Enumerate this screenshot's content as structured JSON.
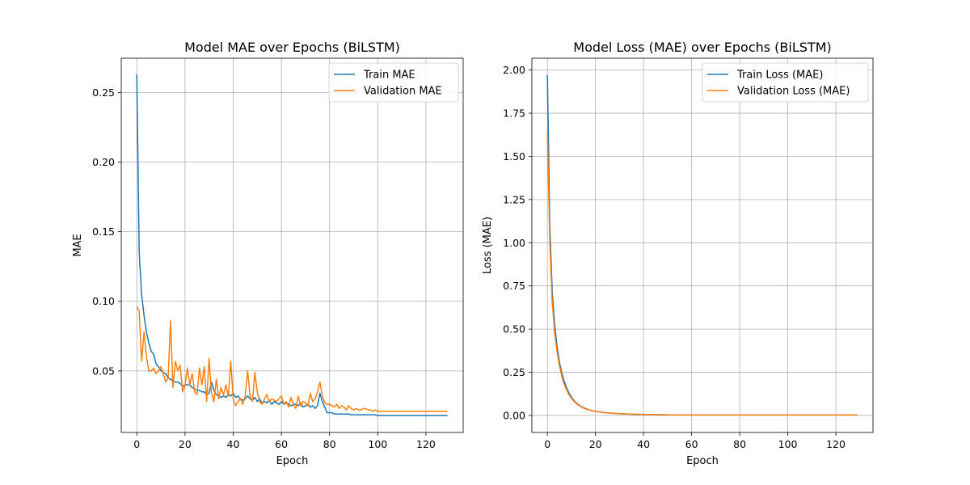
{
  "chart_data": [
    {
      "type": "line",
      "title": "Model MAE over Epochs (BiLSTM)",
      "xlabel": "Epoch",
      "ylabel": "MAE",
      "xlim": [
        -6.45,
        135.45
      ],
      "ylim": [
        0.0058,
        0.2746
      ],
      "xticks": [
        0,
        20,
        40,
        60,
        80,
        100,
        120
      ],
      "yticks": [
        0.05,
        0.1,
        0.15,
        0.2,
        0.25
      ],
      "ytick_labels": [
        "0.05",
        "0.10",
        "0.15",
        "0.20",
        "0.25"
      ],
      "grid": true,
      "legend_position": "upper right",
      "series": [
        {
          "name": "Train MAE",
          "color": "#1f77b4",
          "values": [
            0.263,
            0.135,
            0.105,
            0.09,
            0.078,
            0.07,
            0.064,
            0.062,
            0.055,
            0.053,
            0.05,
            0.049,
            0.048,
            0.045,
            0.044,
            0.043,
            0.042,
            0.042,
            0.041,
            0.039,
            0.04,
            0.04,
            0.04,
            0.038,
            0.037,
            0.036,
            0.036,
            0.035,
            0.035,
            0.033,
            0.034,
            0.042,
            0.036,
            0.033,
            0.032,
            0.031,
            0.032,
            0.031,
            0.033,
            0.032,
            0.034,
            0.031,
            0.032,
            0.03,
            0.029,
            0.03,
            0.032,
            0.03,
            0.029,
            0.031,
            0.028,
            0.03,
            0.027,
            0.028,
            0.027,
            0.029,
            0.026,
            0.028,
            0.027,
            0.026,
            0.028,
            0.026,
            0.027,
            0.026,
            0.025,
            0.026,
            0.026,
            0.025,
            0.027,
            0.024,
            0.025,
            0.026,
            0.024,
            0.025,
            0.023,
            0.025,
            0.034,
            0.028,
            0.024,
            0.02,
            0.02,
            0.02,
            0.019,
            0.019,
            0.019,
            0.019,
            0.019,
            0.019,
            0.019,
            0.0185,
            0.0185,
            0.0185,
            0.0185,
            0.0185,
            0.0185,
            0.0185,
            0.0185,
            0.0185,
            0.0185,
            0.0185,
            0.018,
            0.018,
            0.018,
            0.018,
            0.018,
            0.018,
            0.018,
            0.018,
            0.018,
            0.018,
            0.018,
            0.018,
            0.018,
            0.018,
            0.018,
            0.018,
            0.018,
            0.018,
            0.018,
            0.018,
            0.018,
            0.018,
            0.018,
            0.018,
            0.018,
            0.018,
            0.018,
            0.018,
            0.018,
            0.018
          ]
        },
        {
          "name": "Validation MAE",
          "color": "#ff7f0e",
          "values": [
            0.096,
            0.093,
            0.057,
            0.078,
            0.06,
            0.05,
            0.05,
            0.052,
            0.048,
            0.05,
            0.053,
            0.048,
            0.042,
            0.045,
            0.086,
            0.038,
            0.057,
            0.05,
            0.054,
            0.035,
            0.04,
            0.052,
            0.04,
            0.048,
            0.035,
            0.033,
            0.052,
            0.04,
            0.053,
            0.028,
            0.059,
            0.034,
            0.028,
            0.044,
            0.03,
            0.038,
            0.033,
            0.04,
            0.032,
            0.057,
            0.03,
            0.025,
            0.028,
            0.03,
            0.026,
            0.032,
            0.05,
            0.032,
            0.028,
            0.049,
            0.035,
            0.028,
            0.026,
            0.03,
            0.033,
            0.028,
            0.03,
            0.029,
            0.028,
            0.03,
            0.032,
            0.026,
            0.028,
            0.024,
            0.031,
            0.026,
            0.023,
            0.032,
            0.025,
            0.028,
            0.027,
            0.025,
            0.034,
            0.028,
            0.03,
            0.035,
            0.042,
            0.032,
            0.027,
            0.026,
            0.026,
            0.025,
            0.024,
            0.026,
            0.023,
            0.025,
            0.024,
            0.022,
            0.025,
            0.023,
            0.022,
            0.023,
            0.022,
            0.022,
            0.023,
            0.023,
            0.022,
            0.022,
            0.021,
            0.022,
            0.021,
            0.021,
            0.021,
            0.021,
            0.021,
            0.021,
            0.021,
            0.021,
            0.021,
            0.021,
            0.021,
            0.021,
            0.021,
            0.021,
            0.021,
            0.021,
            0.021,
            0.021,
            0.021,
            0.021,
            0.021,
            0.021,
            0.021,
            0.021,
            0.021,
            0.021,
            0.021,
            0.021,
            0.021,
            0.021
          ]
        }
      ]
    },
    {
      "type": "line",
      "title": "Model Loss (MAE) over Epochs (BiLSTM)",
      "xlabel": "Epoch",
      "ylabel": "Loss (MAE)",
      "xlim": [
        -6.45,
        135.45
      ],
      "ylim": [
        -0.0985,
        2.0685
      ],
      "xticks": [
        0,
        20,
        40,
        60,
        80,
        100,
        120
      ],
      "yticks": [
        0.0,
        0.25,
        0.5,
        0.75,
        1.0,
        1.25,
        1.5,
        1.75,
        2.0
      ],
      "ytick_labels": [
        "0.00",
        "0.25",
        "0.50",
        "0.75",
        "1.00",
        "1.25",
        "1.50",
        "1.75",
        "2.00"
      ],
      "grid": true,
      "legend_position": "upper right",
      "series": [
        {
          "name": "Train Loss (MAE)",
          "color": "#1f77b4",
          "values": [
            1.97,
            1.1,
            0.72,
            0.53,
            0.4,
            0.31,
            0.245,
            0.197,
            0.16,
            0.13,
            0.107,
            0.088,
            0.073,
            0.061,
            0.052,
            0.045,
            0.039,
            0.034,
            0.03,
            0.027,
            0.024,
            0.022,
            0.02,
            0.018,
            0.016,
            0.015,
            0.014,
            0.013,
            0.012,
            0.011,
            0.01,
            0.0095,
            0.009,
            0.0085,
            0.008,
            0.0075,
            0.007,
            0.0068,
            0.0065,
            0.0062,
            0.006,
            0.0058,
            0.0055,
            0.0052,
            0.005,
            0.0048,
            0.0046,
            0.0044,
            0.0042,
            0.004,
            0.0038,
            0.0036,
            0.0034,
            0.0032,
            0.003,
            0.003,
            0.003,
            0.003,
            0.003,
            0.003,
            0.003,
            0.003,
            0.003,
            0.003,
            0.003,
            0.003,
            0.003,
            0.003,
            0.003,
            0.003,
            0.003,
            0.003,
            0.003,
            0.003,
            0.003,
            0.003,
            0.003,
            0.003,
            0.003,
            0.003,
            0.003,
            0.003,
            0.003,
            0.003,
            0.003,
            0.003,
            0.003,
            0.003,
            0.003,
            0.003,
            0.003,
            0.003,
            0.003,
            0.003,
            0.003,
            0.003,
            0.003,
            0.003,
            0.003,
            0.003,
            0.003,
            0.003,
            0.003,
            0.003,
            0.003,
            0.003,
            0.003,
            0.003,
            0.003,
            0.003,
            0.003,
            0.003,
            0.003,
            0.003,
            0.003,
            0.003,
            0.003,
            0.003,
            0.003,
            0.003,
            0.003,
            0.003,
            0.003,
            0.003,
            0.003,
            0.003,
            0.003,
            0.003,
            0.003,
            0.003
          ]
        },
        {
          "name": "Validation Loss (MAE)",
          "color": "#ff7f0e",
          "values": [
            1.64,
            1.0,
            0.66,
            0.48,
            0.37,
            0.29,
            0.225,
            0.18,
            0.147,
            0.12,
            0.1,
            0.083,
            0.07,
            0.059,
            0.05,
            0.043,
            0.037,
            0.033,
            0.029,
            0.026,
            0.023,
            0.021,
            0.019,
            0.017,
            0.016,
            0.015,
            0.014,
            0.013,
            0.012,
            0.011,
            0.01,
            0.0095,
            0.009,
            0.0085,
            0.008,
            0.0075,
            0.007,
            0.0068,
            0.0065,
            0.0062,
            0.006,
            0.0058,
            0.0055,
            0.0052,
            0.005,
            0.0048,
            0.0046,
            0.0044,
            0.0042,
            0.004,
            0.0038,
            0.0036,
            0.0034,
            0.0032,
            0.003,
            0.003,
            0.003,
            0.003,
            0.003,
            0.003,
            0.003,
            0.003,
            0.003,
            0.003,
            0.003,
            0.003,
            0.003,
            0.003,
            0.003,
            0.003,
            0.003,
            0.003,
            0.003,
            0.003,
            0.003,
            0.003,
            0.003,
            0.003,
            0.003,
            0.003,
            0.003,
            0.003,
            0.003,
            0.003,
            0.003,
            0.003,
            0.003,
            0.003,
            0.003,
            0.003,
            0.003,
            0.003,
            0.003,
            0.003,
            0.003,
            0.003,
            0.003,
            0.003,
            0.003,
            0.003,
            0.003,
            0.003,
            0.003,
            0.003,
            0.003,
            0.003,
            0.003,
            0.003,
            0.003,
            0.003,
            0.003,
            0.003,
            0.003,
            0.003,
            0.003,
            0.003,
            0.003,
            0.003,
            0.003,
            0.003,
            0.003,
            0.003,
            0.003,
            0.003,
            0.003,
            0.003,
            0.003,
            0.003,
            0.003,
            0.003
          ]
        }
      ]
    }
  ]
}
